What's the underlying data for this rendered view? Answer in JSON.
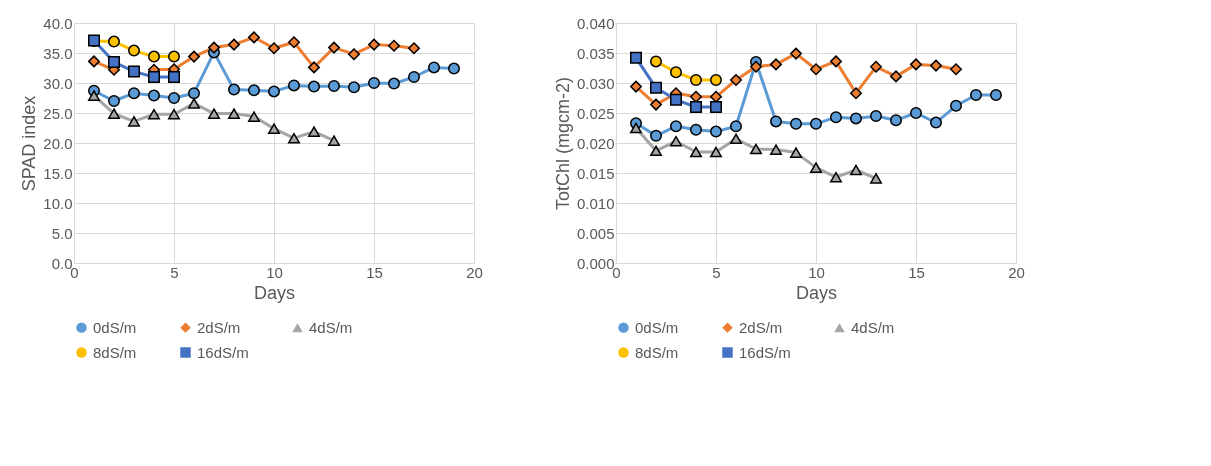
{
  "chart_data": [
    {
      "type": "line",
      "xlabel": "Days",
      "ylabel": "SPAD index",
      "xlim": [
        0,
        20
      ],
      "xticks": [
        0,
        5,
        10,
        15,
        20
      ],
      "ylim": [
        0,
        40
      ],
      "yticks": [
        {
          "value": 0,
          "label": "0.0"
        },
        {
          "value": 5,
          "label": "5.0"
        },
        {
          "value": 10,
          "label": "10.0"
        },
        {
          "value": 15,
          "label": "15.0"
        },
        {
          "value": 20,
          "label": "20.0"
        },
        {
          "value": 25,
          "label": "25.0"
        },
        {
          "value": 30,
          "label": "30.0"
        },
        {
          "value": 35,
          "label": "35.0"
        },
        {
          "value": 40,
          "label": "40.0"
        }
      ],
      "grid": true,
      "legend": "bottom",
      "line_style": "solid",
      "series": [
        {
          "name": "0dS/m",
          "color": "#5b9bd5",
          "marker": "circle",
          "x": [
            1,
            2,
            3,
            4,
            5,
            6,
            7,
            8,
            9,
            10,
            11,
            12,
            13,
            14,
            15,
            16,
            17,
            18,
            19
          ],
          "values": [
            28.7,
            27.0,
            28.3,
            27.9,
            27.5,
            28.3,
            35.1,
            28.9,
            28.8,
            28.6,
            29.6,
            29.4,
            29.5,
            29.3,
            30.0,
            29.9,
            31.0,
            32.6,
            32.4
          ]
        },
        {
          "name": "2dS/m",
          "color": "#ed7d31",
          "marker": "diamond",
          "x": [
            1,
            2,
            3,
            4,
            5,
            6,
            7,
            8,
            9,
            10,
            11,
            12,
            13,
            14,
            15,
            16,
            17
          ],
          "values": [
            33.6,
            32.2,
            null,
            32.2,
            32.3,
            34.4,
            35.9,
            36.4,
            37.6,
            35.8,
            36.8,
            32.6,
            35.9,
            34.8,
            36.4,
            36.2,
            35.8
          ]
        },
        {
          "name": "4dS/m",
          "color": "#a5a5a5",
          "marker": "triangle",
          "x": [
            1,
            2,
            3,
            4,
            5,
            6,
            7,
            8,
            9,
            10,
            11,
            12,
            13
          ],
          "values": [
            27.9,
            24.9,
            23.6,
            24.8,
            24.8,
            26.6,
            24.9,
            24.9,
            24.4,
            22.4,
            20.8,
            21.9,
            20.4
          ]
        },
        {
          "name": "8dS/m",
          "color": "#ffc000",
          "marker": "circle",
          "x": [
            1,
            2,
            3,
            4,
            5
          ],
          "values": [
            37.0,
            36.9,
            35.4,
            34.4,
            34.4
          ]
        },
        {
          "name": "16dS/m",
          "color": "#4472c4",
          "marker": "square",
          "x": [
            1,
            2,
            3,
            4,
            5
          ],
          "values": [
            37.1,
            33.5,
            31.9,
            31.0,
            31.0
          ]
        }
      ]
    },
    {
      "type": "line",
      "xlabel": "Days",
      "ylabel": "TotChl (mgcm-2)",
      "xlim": [
        0,
        20
      ],
      "xticks": [
        0,
        5,
        10,
        15,
        20
      ],
      "ylim": [
        0,
        0.04
      ],
      "yticks": [
        {
          "value": 0,
          "label": "0.000"
        },
        {
          "value": 0.005,
          "label": "0.005"
        },
        {
          "value": 0.01,
          "label": "0.010"
        },
        {
          "value": 0.015,
          "label": "0.015"
        },
        {
          "value": 0.02,
          "label": "0.020"
        },
        {
          "value": 0.025,
          "label": "0.025"
        },
        {
          "value": 0.03,
          "label": "0.030"
        },
        {
          "value": 0.035,
          "label": "0.035"
        },
        {
          "value": 0.04,
          "label": "0.040"
        }
      ],
      "grid": true,
      "legend": "bottom",
      "line_style": "solid",
      "series": [
        {
          "name": "0dS/m",
          "color": "#5b9bd5",
          "marker": "circle",
          "x": [
            1,
            2,
            3,
            4,
            5,
            6,
            7,
            8,
            9,
            10,
            11,
            12,
            13,
            14,
            15,
            16,
            17,
            18,
            19
          ],
          "values": [
            0.0233,
            0.0212,
            0.0228,
            0.0222,
            0.0219,
            0.0228,
            0.0335,
            0.0236,
            0.0232,
            0.0232,
            0.0243,
            0.0241,
            0.0245,
            0.0238,
            0.025,
            0.0234,
            0.0262,
            0.028,
            0.028
          ]
        },
        {
          "name": "2dS/m",
          "color": "#ed7d31",
          "marker": "diamond",
          "x": [
            1,
            2,
            3,
            4,
            5,
            6,
            7,
            8,
            9,
            10,
            11,
            12,
            13,
            14,
            15,
            16,
            17
          ],
          "values": [
            0.0294,
            0.0264,
            0.0283,
            0.0277,
            0.0277,
            0.0305,
            0.0327,
            0.0331,
            0.0349,
            0.0323,
            0.0336,
            0.0283,
            0.0327,
            0.0311,
            0.0331,
            0.0329,
            0.0323
          ]
        },
        {
          "name": "4dS/m",
          "color": "#a5a5a5",
          "marker": "triangle",
          "x": [
            1,
            2,
            3,
            4,
            5,
            6,
            7,
            8,
            9,
            10,
            11,
            12,
            13
          ],
          "values": [
            0.0225,
            0.0187,
            0.0203,
            0.0185,
            0.0185,
            0.0207,
            0.019,
            0.0189,
            0.0184,
            0.0159,
            0.0143,
            0.0155,
            0.0141
          ]
        },
        {
          "name": "8dS/m",
          "color": "#ffc000",
          "marker": "circle",
          "x": [
            2,
            3,
            4,
            5
          ],
          "values": [
            0.0336,
            0.0318,
            0.0305,
            0.0305
          ]
        },
        {
          "name": "16dS/m",
          "color": "#4472c4",
          "marker": "square",
          "x": [
            1,
            2,
            3,
            4,
            5
          ],
          "values": [
            0.0342,
            0.0292,
            0.0272,
            0.026,
            0.026
          ]
        }
      ]
    }
  ]
}
